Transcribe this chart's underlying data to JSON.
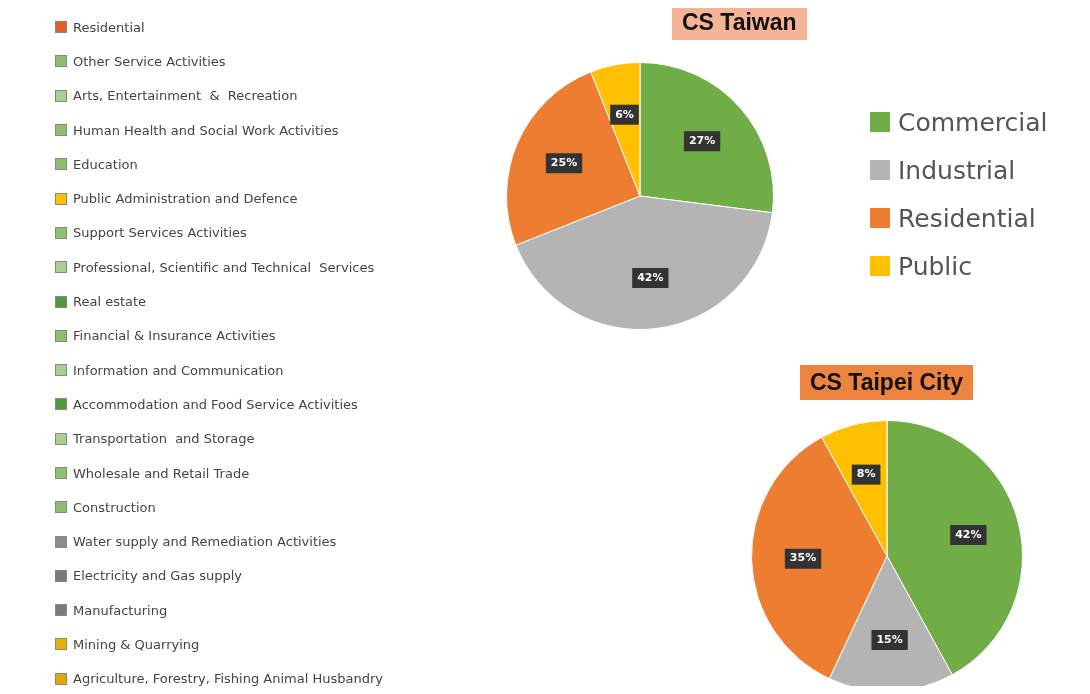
{
  "chart_data": [
    {
      "type": "other",
      "annotations": [
        "Residential",
        "Other Service Activities",
        "Arts, Entertainment  &  Recreation",
        "Human Health and Social Work Activities",
        "Education",
        "Public Administration and Defence",
        "Support Services Activities",
        "Professional, Scientific and Technical  Services",
        "Real estate",
        "Financial & Insurance Activities",
        "Information and Communication",
        "Accommodation and Food Service Activities",
        "Transportation  and Storage",
        "Wholesale and Retail Trade",
        "Construction",
        "Water supply and Remediation Activities",
        "Electricity and Gas supply",
        "Manufacturing",
        "Mining & Quarrying",
        "Agriculture, Forestry, Fishing Animal Husbandry"
      ],
      "colors": [
        "#e0602a",
        "#8fbf6a",
        "#a9d08e",
        "#8fbf6a",
        "#8fbf6a",
        "#ffc000",
        "#8fbf6a",
        "#a9d08e",
        "#4e9a3a",
        "#8fbf6a",
        "#a9d08e",
        "#4e9a3a",
        "#a9d08e",
        "#8fbf6a",
        "#8fbf6a",
        "#8c8c8c",
        "#7a7a7a",
        "#7a7a7a",
        "#e8b000",
        "#e0a800"
      ]
    },
    {
      "type": "pie",
      "title": "CS Taiwan",
      "categories": [
        "Commercial",
        "Industrial",
        "Residential",
        "Public"
      ],
      "values": [
        27,
        42,
        25,
        6
      ],
      "colors": [
        "#70ad47",
        "#b4b4b4",
        "#ed7d31",
        "#ffc000"
      ],
      "value_labels": [
        "27%",
        "42%",
        "25%",
        "6%"
      ],
      "legend": "right"
    },
    {
      "type": "pie",
      "title": "CS Taipei City",
      "categories": [
        null,
        null,
        null,
        null
      ],
      "values": [
        42,
        15,
        35,
        8
      ],
      "colors": [
        "#70ad47",
        "#b4b4b4",
        "#ed7d31",
        "#ffc000"
      ],
      "value_labels": [
        "42%",
        "15%",
        "35%",
        "8%"
      ]
    }
  ]
}
